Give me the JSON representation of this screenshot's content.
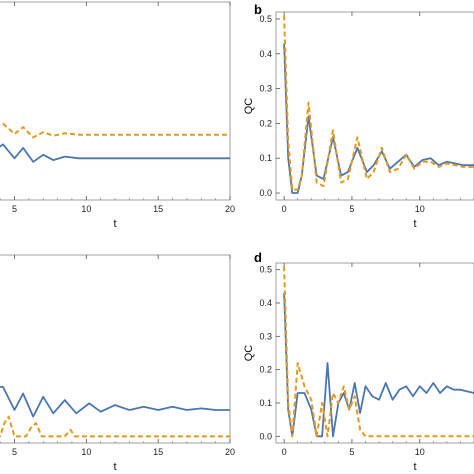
{
  "colors": {
    "solid": "#4a77b4",
    "dashed": "#e59a1c",
    "frame": "#888888"
  },
  "chart_data": [
    {
      "type": "line",
      "panel": "a",
      "panel_label": "",
      "xlabel": "t",
      "ylabel": "",
      "xlim": [
        2.6,
        20
      ],
      "ylim": [
        -0.02,
        0.55
      ],
      "xticks": [
        5,
        10,
        15,
        20
      ],
      "yticks": [],
      "grid": false,
      "series": [
        {
          "style": "solid",
          "x": [
            2.6,
            3.5,
            4.2,
            5,
            5.6,
            6.3,
            7,
            7.7,
            8.5,
            9.5,
            11,
            13,
            15,
            20
          ],
          "y": [
            0.12,
            0.12,
            0.14,
            0.1,
            0.13,
            0.09,
            0.11,
            0.095,
            0.105,
            0.1,
            0.1,
            0.1,
            0.1,
            0.1
          ]
        },
        {
          "style": "dashed",
          "x": [
            2.6,
            3.5,
            4.2,
            5,
            5.6,
            6.3,
            7,
            7.7,
            8.5,
            9.5,
            11,
            13,
            15,
            20
          ],
          "y": [
            0.2,
            0.19,
            0.2,
            0.17,
            0.19,
            0.16,
            0.175,
            0.165,
            0.172,
            0.168,
            0.168,
            0.168,
            0.168,
            0.168
          ]
        }
      ]
    },
    {
      "type": "line",
      "panel": "b",
      "panel_label": "b",
      "xlabel": "t",
      "ylabel": "QC",
      "xlim": [
        -0.6,
        14
      ],
      "ylim": [
        -0.02,
        0.52
      ],
      "xticks": [
        0,
        5,
        10
      ],
      "yticks": [
        0.0,
        0.1,
        0.2,
        0.3,
        0.4,
        0.5
      ],
      "grid": false,
      "series": [
        {
          "style": "solid",
          "x": [
            0,
            0.3,
            0.6,
            1.0,
            1.3,
            1.8,
            2.4,
            2.9,
            3.6,
            4.2,
            4.7,
            5.4,
            6.1,
            6.6,
            7.2,
            7.8,
            8.4,
            9.0,
            9.6,
            10.2,
            10.8,
            11.4,
            12,
            12.6,
            13.2,
            14
          ],
          "y": [
            0.43,
            0.1,
            0.0,
            0.0,
            0.05,
            0.22,
            0.05,
            0.04,
            0.16,
            0.05,
            0.06,
            0.13,
            0.06,
            0.08,
            0.12,
            0.07,
            0.09,
            0.11,
            0.075,
            0.095,
            0.1,
            0.08,
            0.09,
            0.085,
            0.08,
            0.08
          ]
        },
        {
          "style": "dashed",
          "x": [
            0,
            0.3,
            0.6,
            1.0,
            1.3,
            1.8,
            2.4,
            2.9,
            3.6,
            4.2,
            4.7,
            5.4,
            6.1,
            6.6,
            7.2,
            7.8,
            8.4,
            9.0,
            9.6,
            10.2,
            10.8,
            11.4,
            12,
            12.6,
            13.2,
            14
          ],
          "y": [
            0.51,
            0.15,
            0.01,
            0.01,
            0.05,
            0.26,
            0.03,
            0.02,
            0.18,
            0.03,
            0.04,
            0.16,
            0.04,
            0.06,
            0.13,
            0.06,
            0.07,
            0.11,
            0.07,
            0.09,
            0.09,
            0.075,
            0.085,
            0.08,
            0.075,
            0.075
          ]
        }
      ]
    },
    {
      "type": "line",
      "panel": "c",
      "panel_label": "",
      "xlabel": "t",
      "ylabel": "",
      "xlim": [
        2.6,
        20
      ],
      "ylim": [
        -0.02,
        0.55
      ],
      "xticks": [
        5,
        10,
        15,
        20
      ],
      "yticks": [],
      "grid": false,
      "series": [
        {
          "style": "solid",
          "x": [
            2.6,
            3.5,
            4.2,
            5,
            5.6,
            6.3,
            7,
            7.7,
            8.5,
            9.3,
            10.2,
            11,
            12,
            13,
            14,
            15,
            16,
            17,
            18,
            19,
            20
          ],
          "y": [
            0.15,
            0.15,
            0.15,
            0.08,
            0.13,
            0.06,
            0.12,
            0.07,
            0.11,
            0.07,
            0.1,
            0.075,
            0.095,
            0.08,
            0.09,
            0.08,
            0.09,
            0.08,
            0.085,
            0.08,
            0.08
          ]
        },
        {
          "style": "dashed",
          "x": [
            2.6,
            4,
            4.3,
            4.6,
            5,
            5.3,
            5.8,
            6.2,
            6.5,
            6.9,
            7.4,
            7.8,
            8.5,
            8.9,
            9.2,
            20
          ],
          "y": [
            0.0,
            0.0,
            0.04,
            0.06,
            0.0,
            0.0,
            0.0,
            0.03,
            0.04,
            0.0,
            0.0,
            0.0,
            0.0,
            0.02,
            0.0,
            0.0
          ]
        }
      ]
    },
    {
      "type": "line",
      "panel": "d",
      "panel_label": "d",
      "xlabel": "t",
      "ylabel": "QC",
      "xlim": [
        -0.6,
        14
      ],
      "ylim": [
        -0.02,
        0.52
      ],
      "xticks": [
        0,
        5,
        10
      ],
      "yticks": [
        0.0,
        0.1,
        0.2,
        0.3,
        0.4,
        0.5
      ],
      "grid": false,
      "series": [
        {
          "style": "solid",
          "x": [
            0,
            0.3,
            0.6,
            1.0,
            1.5,
            2.0,
            2.4,
            2.8,
            3.2,
            3.6,
            4.0,
            4.4,
            4.8,
            5.2,
            5.6,
            6.0,
            6.5,
            7.0,
            7.5,
            8.0,
            8.5,
            9.0,
            9.5,
            10,
            10.5,
            11,
            11.5,
            12,
            12.5,
            13,
            14
          ],
          "y": [
            0.43,
            0.08,
            0.0,
            0.13,
            0.13,
            0.08,
            0.0,
            0.0,
            0.22,
            0.0,
            0.1,
            0.13,
            0.08,
            0.16,
            0.07,
            0.15,
            0.12,
            0.11,
            0.16,
            0.11,
            0.14,
            0.15,
            0.12,
            0.15,
            0.13,
            0.16,
            0.13,
            0.15,
            0.14,
            0.14,
            0.13
          ]
        },
        {
          "style": "dashed",
          "x": [
            0,
            0.3,
            0.6,
            1.0,
            1.5,
            2.0,
            2.4,
            2.8,
            3.2,
            3.6,
            4.0,
            4.4,
            4.8,
            5.2,
            5.6,
            6.0,
            6.5,
            7.0,
            14
          ],
          "y": [
            0.51,
            0.1,
            0.0,
            0.22,
            0.15,
            0.11,
            0.0,
            0.1,
            0.0,
            0.13,
            0.1,
            0.15,
            0.08,
            0.12,
            0.02,
            0.0,
            0.0,
            0.0,
            0.0
          ]
        }
      ]
    }
  ]
}
